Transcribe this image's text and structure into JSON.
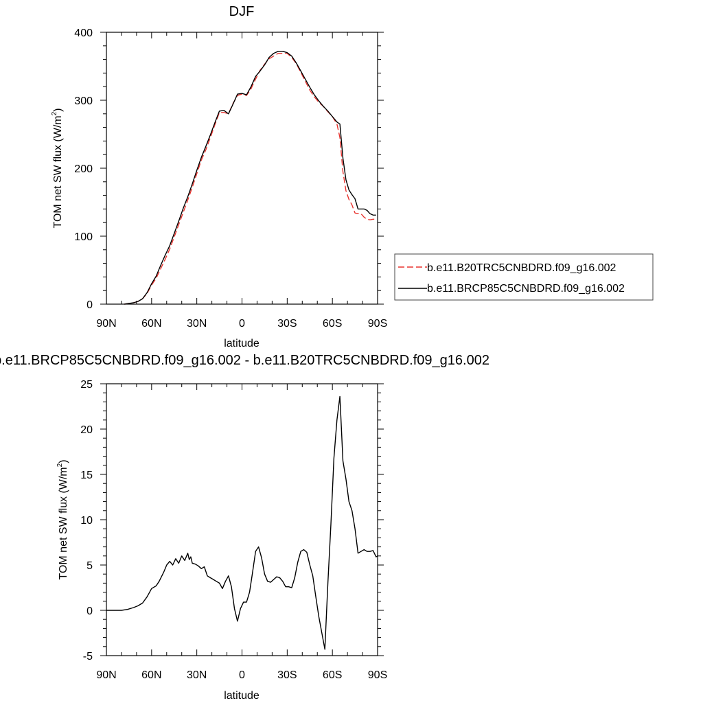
{
  "chart_data": [
    {
      "type": "line",
      "title": "DJF",
      "xlabel": "latitude",
      "ylabel": "TOM net SW flux (W/m",
      "ylabel_sup": "2",
      "ylabel_close": ")",
      "xlim": [
        90,
        -90
      ],
      "ylim": [
        0,
        400
      ],
      "xticks": [
        {
          "value": 90,
          "label": "90N"
        },
        {
          "value": 60,
          "label": "60N"
        },
        {
          "value": 30,
          "label": "30N"
        },
        {
          "value": 0,
          "label": "0"
        },
        {
          "value": -30,
          "label": "30S"
        },
        {
          "value": -60,
          "label": "60S"
        },
        {
          "value": -90,
          "label": "90S"
        }
      ],
      "yticks": [
        {
          "value": 0,
          "label": "0"
        },
        {
          "value": 100,
          "label": "100"
        },
        {
          "value": 200,
          "label": "200"
        },
        {
          "value": 300,
          "label": "300"
        },
        {
          "value": 400,
          "label": "400"
        }
      ],
      "legend_position": "right",
      "series": [
        {
          "name": "b.e11.B20TRC5CNBDRD.f09_g16.002",
          "color": "#e8332e",
          "dash": "dashed",
          "x": [
            78,
            75,
            72,
            69,
            66,
            63,
            60,
            57,
            54,
            51,
            48,
            45,
            42,
            39,
            36,
            33,
            30,
            27,
            24,
            21,
            18,
            15,
            12,
            9,
            6,
            3,
            0,
            -3,
            -6,
            -9,
            -12,
            -15,
            -18,
            -21,
            -24,
            -27,
            -30,
            -33,
            -36,
            -39,
            -42,
            -45,
            -48,
            -51,
            -54,
            -57,
            -60,
            -63,
            -65,
            -67,
            -69,
            -71,
            -73,
            -75,
            -77,
            -79,
            -81,
            -83,
            -85,
            -87,
            -89
          ],
          "y": [
            0,
            1,
            2,
            4,
            8,
            16,
            28,
            38,
            52,
            66,
            81,
            99,
            117,
            135,
            153,
            172,
            192,
            212,
            227,
            245,
            264,
            282,
            282,
            280,
            295,
            307,
            309,
            307,
            317,
            331,
            344,
            353,
            361,
            365,
            369,
            369,
            369,
            363,
            354,
            341,
            328,
            315,
            305,
            297,
            291,
            283,
            276,
            265,
            245,
            195,
            167,
            154,
            146,
            134,
            133,
            133,
            128,
            125,
            124,
            125,
            125
          ]
        },
        {
          "name": "b.e11.BRCP85C5CNBDRD.f09_g16.002",
          "color": "#000000",
          "dash": "solid",
          "x": [
            78,
            75,
            72,
            69,
            66,
            63,
            60,
            57,
            54,
            51,
            48,
            45,
            42,
            39,
            36,
            33,
            30,
            27,
            24,
            21,
            18,
            15,
            12,
            9,
            6,
            3,
            0,
            -3,
            -6,
            -9,
            -12,
            -15,
            -18,
            -21,
            -24,
            -27,
            -30,
            -33,
            -36,
            -39,
            -42,
            -45,
            -48,
            -51,
            -54,
            -57,
            -60,
            -63,
            -65,
            -67,
            -69,
            -71,
            -73,
            -75,
            -77,
            -79,
            -81,
            -83,
            -85,
            -87,
            -89
          ],
          "y": [
            0,
            1,
            2,
            4,
            8,
            17,
            30,
            41,
            57,
            72,
            86,
            104,
            122,
            141,
            158,
            177,
            197,
            216,
            232,
            249,
            267,
            284,
            285,
            280,
            294,
            309,
            310,
            308,
            320,
            335,
            343,
            352,
            363,
            369,
            372,
            372,
            370,
            365,
            355,
            343,
            331,
            319,
            308,
            299,
            291,
            284,
            276,
            268,
            265,
            215,
            183,
            168,
            161,
            155,
            140,
            140,
            140,
            138,
            133,
            131,
            131
          ]
        }
      ]
    },
    {
      "type": "line",
      "title": "b.e11.BRCP85C5CNBDRD.f09_g16.002 - b.e11.B20TRC5CNBDRD.f09_g16.002",
      "xlabel": "latitude",
      "ylabel": "TOM net SW flux (W/m",
      "ylabel_sup": "2",
      "ylabel_close": ")",
      "xlim": [
        90,
        -90
      ],
      "ylim": [
        -5,
        25
      ],
      "xticks": [
        {
          "value": 90,
          "label": "90N"
        },
        {
          "value": 60,
          "label": "60N"
        },
        {
          "value": 30,
          "label": "30N"
        },
        {
          "value": 0,
          "label": "0"
        },
        {
          "value": -30,
          "label": "30S"
        },
        {
          "value": -60,
          "label": "60S"
        },
        {
          "value": -90,
          "label": "90S"
        }
      ],
      "yticks": [
        {
          "value": -5,
          "label": "-5"
        },
        {
          "value": 0,
          "label": "0"
        },
        {
          "value": 5,
          "label": "5"
        },
        {
          "value": 10,
          "label": "10"
        },
        {
          "value": 15,
          "label": "15"
        },
        {
          "value": 20,
          "label": "20"
        },
        {
          "value": 25,
          "label": "25"
        }
      ],
      "series": [
        {
          "color": "#000000",
          "dash": "solid",
          "x": [
            90,
            85,
            80,
            76,
            72,
            69,
            66,
            63,
            60,
            57,
            55,
            52,
            50,
            48,
            46,
            44,
            42,
            40,
            38,
            36,
            35,
            34,
            33,
            31,
            29,
            27,
            25,
            23,
            21,
            19,
            17,
            15,
            13,
            11,
            9,
            7,
            5,
            3,
            1,
            -1,
            -3,
            -5,
            -7,
            -9,
            -11,
            -13,
            -15,
            -17,
            -19,
            -21,
            -23,
            -25,
            -27,
            -29,
            -31,
            -33,
            -35,
            -37,
            -39,
            -41,
            -43,
            -45,
            -47,
            -49,
            -51,
            -53,
            -55,
            -57,
            -59,
            -61,
            -63,
            -65,
            -67,
            -69,
            -71,
            -73,
            -75,
            -77,
            -79,
            -81,
            -83,
            -85,
            -87,
            -89,
            -90
          ],
          "y": [
            0,
            0,
            0,
            0.1,
            0.3,
            0.5,
            0.8,
            1.5,
            2.4,
            2.7,
            3.2,
            4.2,
            5.0,
            5.4,
            5.0,
            5.7,
            5.2,
            6.0,
            5.5,
            6.3,
            5.6,
            5.9,
            5.2,
            5.1,
            4.9,
            4.6,
            4.8,
            3.8,
            3.6,
            3.4,
            3.2,
            3.0,
            2.4,
            3.2,
            3.8,
            2.6,
            0.2,
            -1.2,
            0.2,
            0.9,
            0.9,
            2.0,
            4.2,
            6.5,
            7.0,
            5.8,
            4.0,
            3.2,
            3.1,
            3.4,
            3.7,
            3.6,
            3.2,
            2.6,
            2.6,
            2.5,
            3.6,
            5.3,
            6.5,
            6.7,
            6.4,
            5.0,
            3.8,
            1.5,
            -0.7,
            -2.5,
            -4.3,
            3.0,
            9.5,
            16.8,
            21.0,
            23.6,
            16.5,
            14.5,
            12.0,
            11.0,
            9.0,
            6.3,
            6.5,
            6.7,
            6.5,
            6.5,
            6.6,
            5.9,
            6.0
          ]
        }
      ]
    }
  ]
}
